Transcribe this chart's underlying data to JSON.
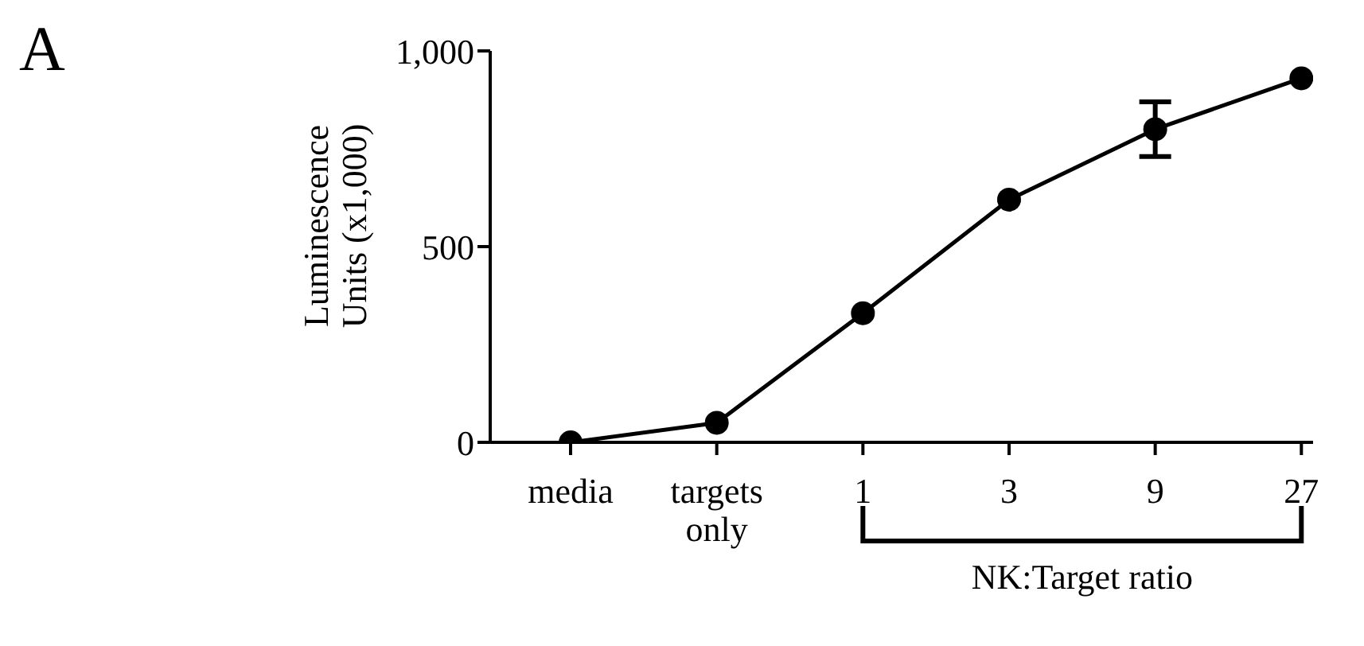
{
  "chart_data": {
    "type": "line",
    "title": "A",
    "ylabel": "Luminescence\nUnits (x1,000)",
    "categories": [
      "media",
      "targets only",
      "1",
      "3",
      "9",
      "27"
    ],
    "series": [
      {
        "color": "#000000",
        "values": [
          0,
          50,
          330,
          620,
          800,
          930
        ],
        "errors": [
          null,
          null,
          null,
          null,
          [
            730,
            870
          ],
          null
        ]
      }
    ],
    "ylim": [
      0,
      1000
    ],
    "yticks": [
      0,
      500,
      {
        "value": 1000,
        "label": "1,000"
      }
    ],
    "annotations": [
      "NK:Target ratio"
    ],
    "marker": "circle",
    "line_style": "solid",
    "grid": false,
    "legend": false
  }
}
